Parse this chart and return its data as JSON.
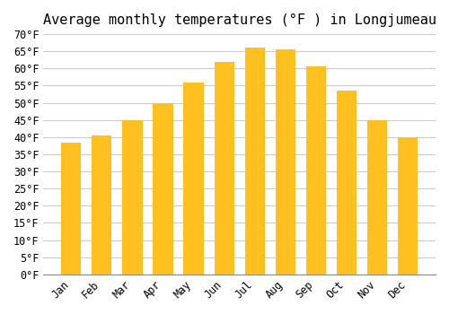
{
  "title": "Average monthly temperatures (°F ) in Longjumeau",
  "months": [
    "Jan",
    "Feb",
    "Mar",
    "Apr",
    "May",
    "Jun",
    "Jul",
    "Aug",
    "Sep",
    "Oct",
    "Nov",
    "Dec"
  ],
  "values": [
    38.5,
    40.5,
    45.0,
    50.0,
    56.0,
    62.0,
    66.0,
    65.5,
    60.5,
    53.5,
    45.0,
    40.0
  ],
  "bar_color_top": "#FFC020",
  "bar_color_bottom": "#FFD060",
  "ylim": [
    0,
    70
  ],
  "yticks": [
    0,
    5,
    10,
    15,
    20,
    25,
    30,
    35,
    40,
    45,
    50,
    55,
    60,
    65,
    70
  ],
  "background_color": "#FFFFFF",
  "grid_color": "#CCCCCC",
  "title_fontsize": 11,
  "tick_fontsize": 8.5,
  "font_family": "monospace"
}
